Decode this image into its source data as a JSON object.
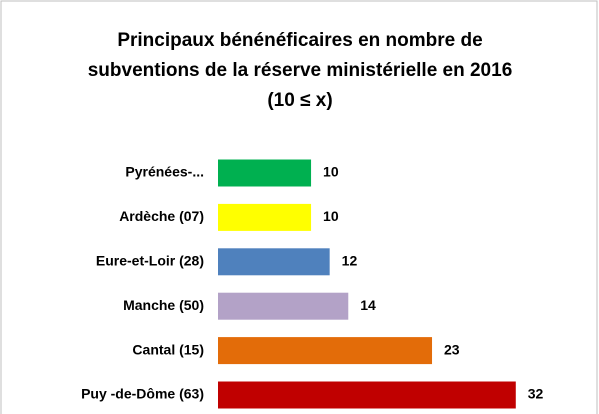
{
  "chart_data": {
    "type": "bar",
    "orientation": "horizontal",
    "title": "Principaux bénénéficaires en nombre de subventions de la réserve ministérielle en 2016 (10 ≤ x)",
    "categories": [
      "Pyrénées-...",
      "Ardèche (07)",
      "Eure-et-Loir (28)",
      "Manche (50)",
      "Cantal (15)",
      "Puy -de-Dôme (63)"
    ],
    "values": [
      10,
      10,
      12,
      14,
      23,
      32
    ],
    "colors": [
      "#00b050",
      "#ffff00",
      "#4f81bd",
      "#b3a2c7",
      "#e36c09",
      "#c00000"
    ],
    "xlim": [
      0,
      36
    ]
  }
}
